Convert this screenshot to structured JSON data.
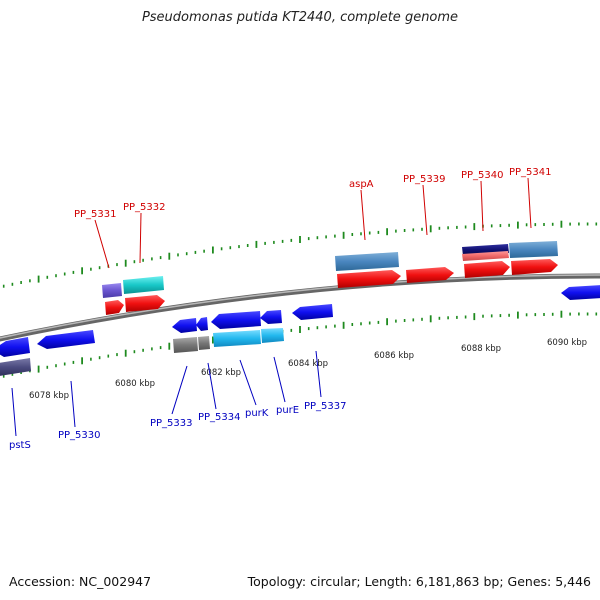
{
  "title": "Pseudomonas putida KT2440, complete genome",
  "footer": {
    "accession": "Accession: NC_002947",
    "summary": "Topology: circular; Length: 6,181,863 bp; Genes: 5,446"
  },
  "colors": {
    "backbone": "#888888",
    "ticks": "#1e8a1e",
    "label_top": "#d00000",
    "label_bottom": "#0000c0",
    "tick_label": "#222222"
  },
  "scale_labels": [
    "6078 kbp",
    "6080 kbp",
    "6082 kbp",
    "6084 kbp",
    "6086 kbp",
    "6088 kbp",
    "6090 kbp"
  ],
  "top_labels": [
    "PP_5331",
    "PP_5332",
    "aspA",
    "PP_5339",
    "PP_5340",
    "PP_5341"
  ],
  "bottom_labels": [
    "pstS",
    "PP_5330",
    "PP_5333",
    "PP_5334",
    "purK",
    "purE",
    "PP_5337"
  ]
}
